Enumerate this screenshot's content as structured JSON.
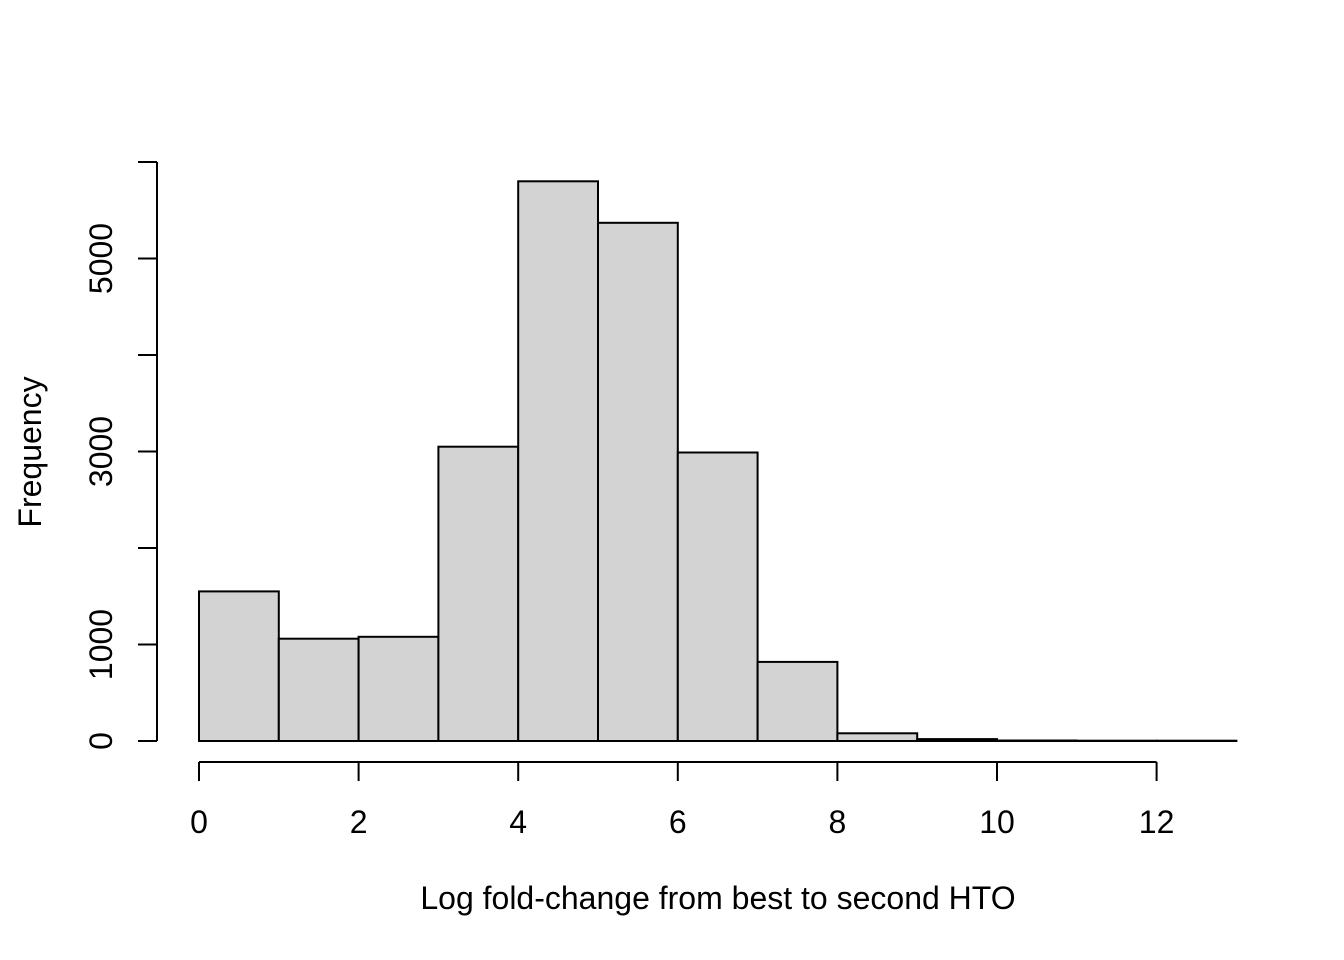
{
  "page": {
    "background": "#ffffff"
  },
  "chart_data": {
    "type": "bar",
    "subtype": "histogram",
    "title": "",
    "xlabel": "Log fold-change from best to second HTO",
    "ylabel": "Frequency",
    "bin_edges": [
      0,
      1,
      2,
      3,
      4,
      5,
      6,
      7,
      8,
      9,
      10,
      11,
      12,
      13
    ],
    "counts": [
      1550,
      1060,
      1080,
      3050,
      5800,
      5370,
      2990,
      820,
      80,
      20,
      5,
      2,
      2
    ],
    "x_ticks": [
      0,
      2,
      4,
      6,
      8,
      10,
      12
    ],
    "x_tick_labels": [
      "0",
      "2",
      "4",
      "6",
      "8",
      "10",
      "12"
    ],
    "y_ticks": [
      0,
      1000,
      2000,
      3000,
      4000,
      5000,
      6000
    ],
    "y_tick_labels": [
      "0",
      "1000",
      "",
      "3000",
      "",
      "5000",
      ""
    ],
    "xlim": [
      0,
      13
    ],
    "ylim": [
      0,
      6000
    ],
    "grid": false,
    "legend_position": "none",
    "bar_fill": "#d3d3d3",
    "bar_stroke": "#000000",
    "axis_color": "#000000",
    "text_color": "#000000"
  }
}
